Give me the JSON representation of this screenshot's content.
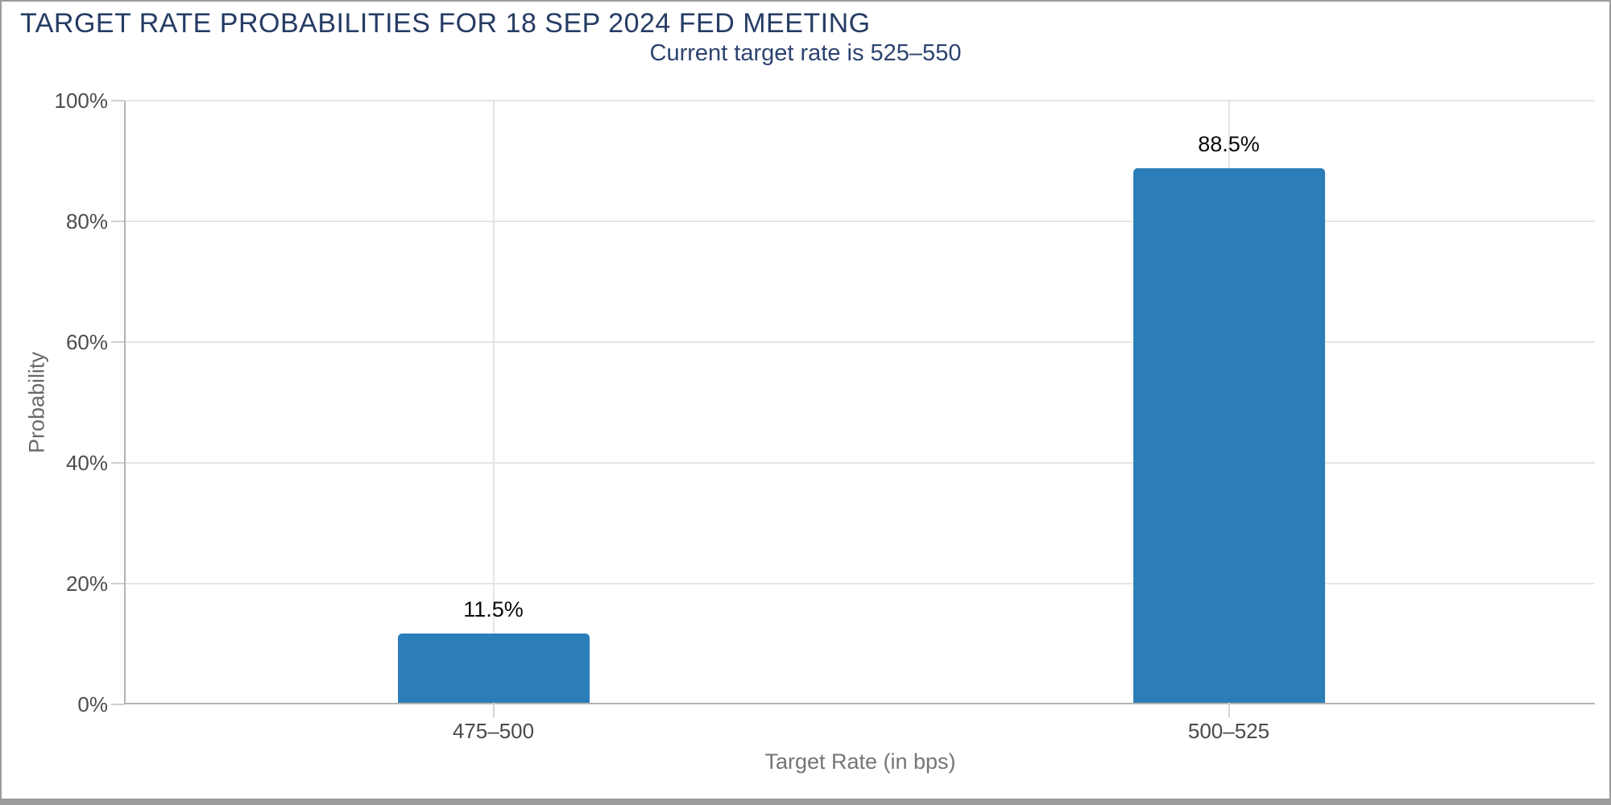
{
  "page": {
    "title": "TARGET RATE PROBABILITIES FOR 18 SEP 2024 FED MEETING",
    "subtitle": "Current target rate is 525–550"
  },
  "chart_data": {
    "type": "bar",
    "title": "TARGET RATE PROBABILITIES FOR 18 SEP 2024 FED MEETING",
    "subtitle": "Current target rate is 525–550",
    "categories": [
      "475–500",
      "500–525"
    ],
    "values": [
      11.5,
      88.5
    ],
    "value_labels": [
      "11.5%",
      "88.5%"
    ],
    "xlabel": "Target Rate (in bps)",
    "ylabel": "Probability",
    "ylim": [
      0,
      100
    ],
    "yticks": [
      0,
      20,
      40,
      60,
      80,
      100
    ],
    "ytick_labels": [
      "0%",
      "20%",
      "40%",
      "60%",
      "80%",
      "100%"
    ],
    "grid": true,
    "legend": "none",
    "bar_color": "#2b7eb8"
  },
  "colors": {
    "title_text": "#263c64",
    "subtitle_text": "#2c4370",
    "bar": "#2b7eb8",
    "gridline": "#e4e4e4",
    "axis_line": "#b3b3b3",
    "tick_label": "#4a4a4a",
    "axis_title": "#757575",
    "page_border": "#9b9b9b",
    "value_label": "#0a0a0a"
  }
}
